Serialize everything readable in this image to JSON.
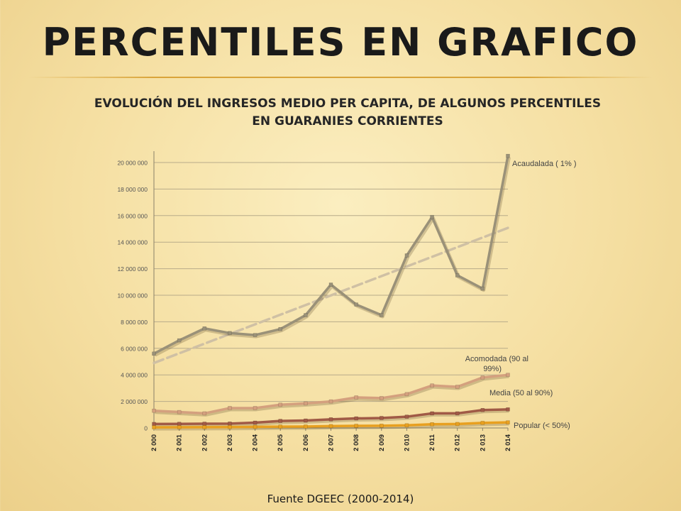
{
  "slide": {
    "title": "PERCENTILES EN GRAFICO",
    "source": "Fuente DGEEC (2000-2014)"
  },
  "chart_data": {
    "type": "line",
    "title_lines": [
      "EVOLUCIÓN DEL INGRESOS MEDIO PER CAPITA, DE ALGUNOS PERCENTILES",
      "EN GUARANIES CORRIENTES"
    ],
    "categories": [
      "2 000",
      "2 001",
      "2 002",
      "2 003",
      "2 004",
      "2 005",
      "2 006",
      "2 007",
      "2 008",
      "2 009",
      "2 010",
      "2 011",
      "2 012",
      "2 013",
      "2 014"
    ],
    "ylim": [
      0,
      20000000
    ],
    "yticks": [
      "0",
      "2 000 000",
      "4 000 000",
      "6 000 000",
      "8 000 000",
      "10 000 000",
      "12 000 000",
      "14 000 000",
      "16 000 000",
      "18 000 000",
      "20 000 000"
    ],
    "grid": true,
    "series": [
      {
        "name": "Acaudalada  ( 1% )",
        "color": "#9a9178",
        "values": [
          5600000,
          6600000,
          7500000,
          7150000,
          7000000,
          7450000,
          8500000,
          10800000,
          9300000,
          8500000,
          13000000,
          15900000,
          11500000,
          10500000,
          20500000
        ]
      },
      {
        "name": "Acomodada (90 al 99%)",
        "color": "#d4a07e",
        "values": [
          1300000,
          1200000,
          1100000,
          1500000,
          1500000,
          1750000,
          1850000,
          2000000,
          2300000,
          2250000,
          2550000,
          3200000,
          3100000,
          3800000,
          4000000
        ]
      },
      {
        "name": "Media (50 al 90%)",
        "color": "#a05a46",
        "values": [
          300000,
          310000,
          320000,
          330000,
          400000,
          530000,
          560000,
          650000,
          720000,
          750000,
          850000,
          1100000,
          1100000,
          1350000,
          1400000
        ]
      },
      {
        "name": "Popular (< 50%)",
        "color": "#e8a020",
        "values": [
          50000,
          55000,
          60000,
          70000,
          80000,
          100000,
          110000,
          140000,
          160000,
          170000,
          200000,
          280000,
          300000,
          380000,
          420000
        ]
      }
    ],
    "trendline": {
      "series": "Acaudalada  ( 1% )",
      "type": "linear",
      "color": "#cfc0a4",
      "dashed": true
    }
  }
}
